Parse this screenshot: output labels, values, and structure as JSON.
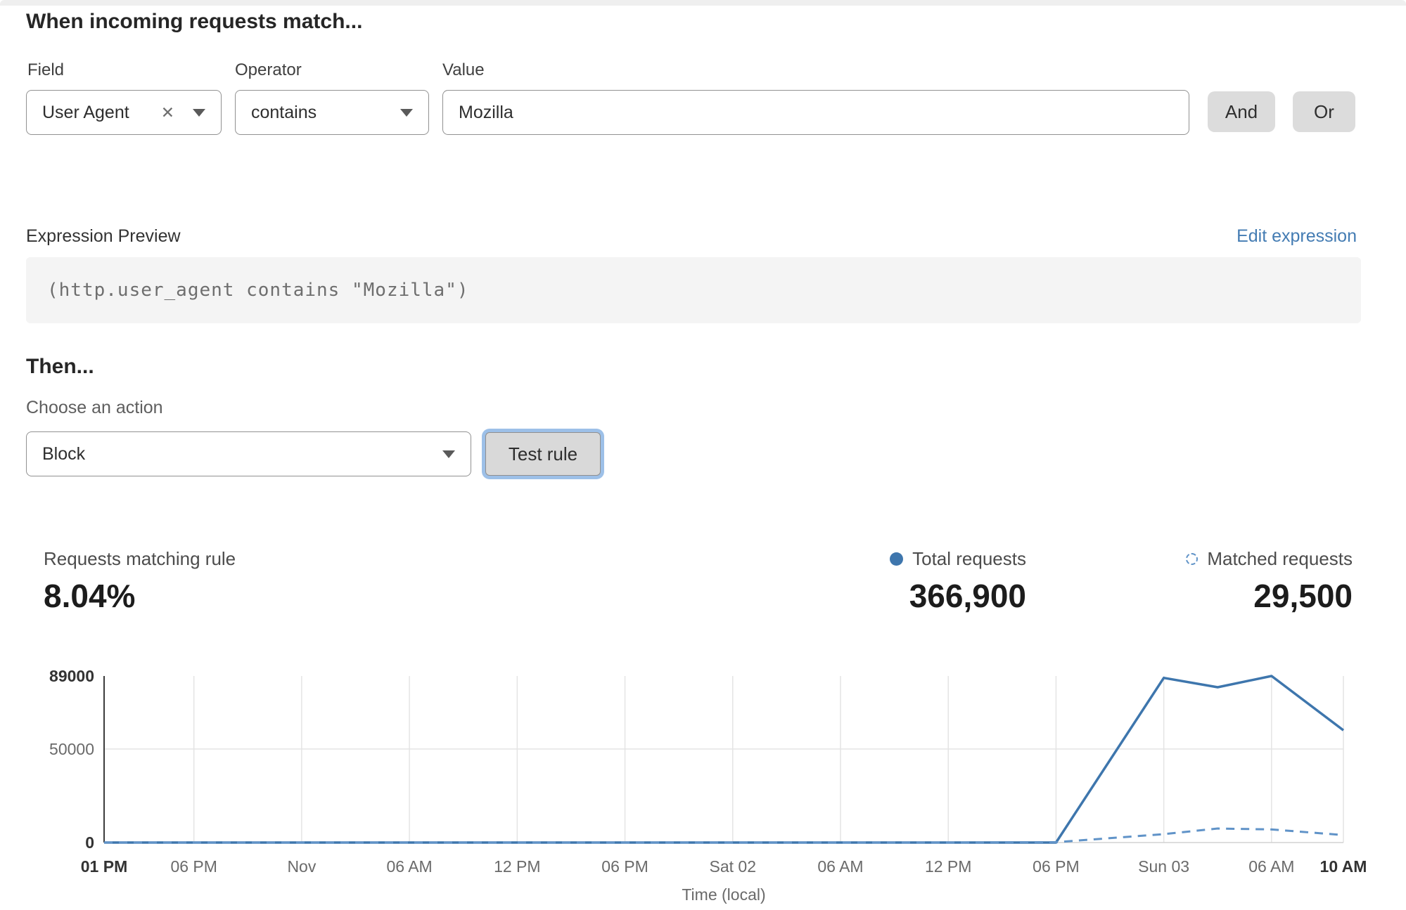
{
  "header": {
    "title": "When incoming requests match..."
  },
  "rule_builder": {
    "field_label": "Field",
    "operator_label": "Operator",
    "value_label": "Value",
    "field_value": "User Agent",
    "operator_value": "contains",
    "value_value": "Mozilla",
    "and_label": "And",
    "or_label": "Or"
  },
  "expression": {
    "label": "Expression Preview",
    "edit_link": "Edit expression",
    "code": "(http.user_agent contains \"Mozilla\")"
  },
  "action": {
    "then_label": "Then...",
    "choose_label": "Choose an action",
    "action_value": "Block",
    "test_button": "Test rule"
  },
  "stats": {
    "matching_label": "Requests matching rule",
    "matching_value": "8.04%",
    "total_label": "Total requests",
    "total_value": "366,900",
    "matched_label": "Matched requests",
    "matched_value": "29,500"
  },
  "colors": {
    "accent_blue": "#3e76ad",
    "dashed_blue": "#6093c8",
    "link_blue": "#447cb3",
    "grid_gray": "#e4e4e4",
    "axis_dark": "#3c3c3c"
  },
  "chart_data": {
    "type": "line",
    "title": "",
    "xlabel": "Time (local)",
    "ylabel": "",
    "ylim": [
      0,
      89000
    ],
    "grid": true,
    "legend_position": "above-right",
    "x_axis_total_hours": 69,
    "yticks": [
      {
        "label": "89000",
        "value": 89000,
        "bold": true
      },
      {
        "label": "50000",
        "value": 50000,
        "bold": false
      },
      {
        "label": "0",
        "value": 0,
        "bold": true
      }
    ],
    "xticks": [
      {
        "label": "01 PM",
        "h": 0,
        "bold": true
      },
      {
        "label": "06 PM",
        "h": 5,
        "bold": false
      },
      {
        "label": "Nov",
        "h": 11,
        "bold": false
      },
      {
        "label": "06 AM",
        "h": 17,
        "bold": false
      },
      {
        "label": "12 PM",
        "h": 23,
        "bold": false
      },
      {
        "label": "06 PM",
        "h": 29,
        "bold": false
      },
      {
        "label": "Sat 02",
        "h": 35,
        "bold": false
      },
      {
        "label": "06 AM",
        "h": 41,
        "bold": false
      },
      {
        "label": "12 PM",
        "h": 47,
        "bold": false
      },
      {
        "label": "06 PM",
        "h": 53,
        "bold": false
      },
      {
        "label": "Sun 03",
        "h": 59,
        "bold": false
      },
      {
        "label": "06 AM",
        "h": 65,
        "bold": false
      },
      {
        "label": "10 AM",
        "h": 69,
        "bold": true
      }
    ],
    "series": [
      {
        "name": "Total requests",
        "style": "solid",
        "points": [
          [
            0,
            0
          ],
          [
            5,
            0
          ],
          [
            11,
            0
          ],
          [
            17,
            0
          ],
          [
            23,
            0
          ],
          [
            29,
            0
          ],
          [
            35,
            0
          ],
          [
            41,
            0
          ],
          [
            47,
            0
          ],
          [
            53,
            0
          ],
          [
            59,
            88000
          ],
          [
            62,
            83000
          ],
          [
            65,
            89000
          ],
          [
            69,
            60000
          ]
        ]
      },
      {
        "name": "Matched requests",
        "style": "dashed",
        "points": [
          [
            0,
            0
          ],
          [
            5,
            0
          ],
          [
            11,
            0
          ],
          [
            17,
            0
          ],
          [
            23,
            0
          ],
          [
            29,
            0
          ],
          [
            35,
            0
          ],
          [
            41,
            0
          ],
          [
            47,
            0
          ],
          [
            53,
            200
          ],
          [
            59,
            4500
          ],
          [
            62,
            7500
          ],
          [
            65,
            7000
          ],
          [
            69,
            4000
          ]
        ]
      }
    ]
  }
}
